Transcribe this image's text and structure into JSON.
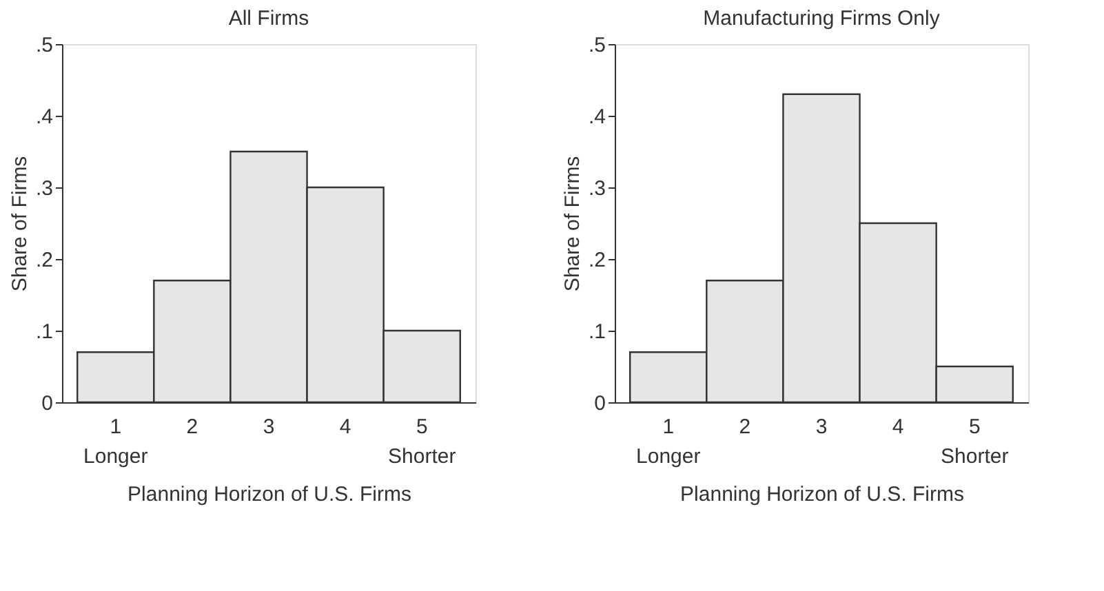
{
  "chart_data": [
    {
      "type": "bar",
      "title": "All Firms",
      "xlabel": "Planning Horizon of U.S. Firms",
      "ylabel": "Share of Firms",
      "categories": [
        "1",
        "2",
        "3",
        "4",
        "5"
      ],
      "values": [
        0.07,
        0.17,
        0.35,
        0.3,
        0.1
      ],
      "color": "#e6e6e6",
      "ylim": [
        0,
        0.5
      ],
      "yticks": [
        0,
        {
          "value": 0.1,
          "label": ".1"
        },
        {
          "value": 0.2,
          "label": ".2"
        },
        {
          "value": 0.3,
          "label": ".3"
        },
        {
          "value": 0.4,
          "label": ".4"
        },
        {
          "value": 0.5,
          "label": ".5"
        }
      ],
      "grid": false,
      "annotations": [
        "Longer",
        "Shorter"
      ]
    },
    {
      "type": "bar",
      "title": "Manufacturing Firms Only",
      "xlabel": "Planning Horizon of U.S. Firms",
      "ylabel": "Share of Firms",
      "categories": [
        "1",
        "2",
        "3",
        "4",
        "5"
      ],
      "values": [
        0.07,
        0.17,
        0.43,
        0.25,
        0.05
      ],
      "color": "#e6e6e6",
      "ylim": [
        0,
        0.5
      ],
      "yticks": [
        0,
        {
          "value": 0.1,
          "label": ".1"
        },
        {
          "value": 0.2,
          "label": ".2"
        },
        {
          "value": 0.3,
          "label": ".3"
        },
        {
          "value": 0.4,
          "label": ".4"
        },
        {
          "value": 0.5,
          "label": ".5"
        }
      ],
      "grid": false,
      "annotations": [
        "Longer",
        "Shorter"
      ]
    }
  ]
}
